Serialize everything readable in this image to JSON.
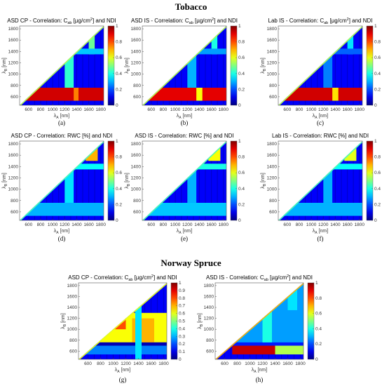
{
  "groups": {
    "tobacco": "Tobacco",
    "spruce": "Norway Spruce"
  },
  "colors": {
    "background": "#ffffff",
    "frame": "#555555",
    "nan": "#ffffff"
  },
  "colormap": "jet",
  "chart_data": [
    {
      "id": "a",
      "panel_label": "(a)",
      "type": "heatmap",
      "title": "ASD CP - Correlation: C_ab [µg/cm²] and NDI",
      "title_parts": {
        "pre": "ASD CP - Correlation: C",
        "sub": "ab",
        "mid": " [µg/cm",
        "sup": "2",
        "post": "] and NDI"
      },
      "xlabel_sym": "λ",
      "xlabel_sub": "A",
      "xlabel_unit": " [nm]",
      "ylabel_sym": "λ",
      "ylabel_sub": "B",
      "ylabel_unit": " [nm]",
      "xticks": [
        600,
        800,
        1000,
        1200,
        1400,
        1600,
        1800
      ],
      "yticks": [
        600,
        800,
        1000,
        1200,
        1400,
        1600,
        1800
      ],
      "xlim": [
        450,
        1850
      ],
      "ylim": [
        450,
        1850
      ],
      "colorbar": {
        "ticks": [
          "0",
          "0.2",
          "0.4",
          "0.6",
          "0.8",
          "1"
        ],
        "range": [
          0,
          1
        ]
      },
      "regions": [
        {
          "x": [
            450,
            1850
          ],
          "y": [
            530,
            760
          ],
          "value": 0.92
        },
        {
          "x": [
            1350,
            1430
          ],
          "y": [
            530,
            760
          ],
          "value": 0.75
        },
        {
          "x": [
            1200,
            1350
          ],
          "y": [
            760,
            1850
          ],
          "value": 0.42
        },
        {
          "x": [
            1600,
            1700
          ],
          "y": [
            1350,
            1850
          ],
          "value": 0.48
        },
        {
          "x": [
            450,
            1850
          ],
          "y": [
            1350,
            1450
          ],
          "value": 0.32
        }
      ],
      "diag_value": 0.55
    },
    {
      "id": "b",
      "panel_label": "(b)",
      "type": "heatmap",
      "title": "ASD IS - Correlation: C_ab [µg/cm²] and NDI",
      "title_parts": {
        "pre": "ASD IS - Correlation: C",
        "sub": "ab",
        "mid": " [µg/cm",
        "sup": "2",
        "post": "] and NDI"
      },
      "xlabel_sym": "λ",
      "xlabel_sub": "A",
      "xlabel_unit": " [nm]",
      "ylabel_sym": "λ",
      "ylabel_sub": "B",
      "ylabel_unit": " [nm]",
      "xticks": [
        600,
        800,
        1000,
        1200,
        1400,
        1600,
        1800
      ],
      "yticks": [
        600,
        800,
        1000,
        1200,
        1400,
        1600,
        1800
      ],
      "xlim": [
        450,
        1850
      ],
      "ylim": [
        450,
        1850
      ],
      "colorbar": {
        "ticks": [
          "0",
          "0.2",
          "0.4",
          "0.6",
          "0.8",
          "1"
        ],
        "range": [
          0,
          1
        ]
      },
      "regions": [
        {
          "x": [
            450,
            1850
          ],
          "y": [
            530,
            760
          ],
          "value": 0.9
        },
        {
          "x": [
            1350,
            1450
          ],
          "y": [
            530,
            760
          ],
          "value": 0.62
        },
        {
          "x": [
            1200,
            1350
          ],
          "y": [
            760,
            1850
          ],
          "value": 0.3
        },
        {
          "x": [
            1600,
            1700
          ],
          "y": [
            1350,
            1850
          ],
          "value": 0.4
        },
        {
          "x": [
            450,
            1850
          ],
          "y": [
            1350,
            1450
          ],
          "value": 0.28
        }
      ],
      "diag_value": 0.55
    },
    {
      "id": "c",
      "panel_label": "(c)",
      "type": "heatmap",
      "title": "Lab IS - Correlation: C_ab [µg/cm²] and NDI",
      "title_parts": {
        "pre": "Lab IS - Correlation: C",
        "sub": "ab",
        "mid": " [µg/cm",
        "sup": "2",
        "post": "] and NDI"
      },
      "xlabel_sym": "λ",
      "xlabel_sub": "A",
      "xlabel_unit": " [nm]",
      "ylabel_sym": "λ",
      "ylabel_sub": "B",
      "ylabel_unit": " [nm]",
      "xticks": [
        600,
        800,
        1000,
        1200,
        1400,
        1600,
        1800
      ],
      "yticks": [
        600,
        800,
        1000,
        1200,
        1400,
        1600,
        1800
      ],
      "xlim": [
        450,
        1850
      ],
      "ylim": [
        450,
        1850
      ],
      "colorbar": {
        "ticks": [
          "0",
          "0.2",
          "0.4",
          "0.6",
          "0.8",
          "1"
        ],
        "range": [
          0,
          1
        ]
      },
      "regions": [
        {
          "x": [
            450,
            1850
          ],
          "y": [
            530,
            760
          ],
          "value": 0.92
        },
        {
          "x": [
            1350,
            1450
          ],
          "y": [
            530,
            760
          ],
          "value": 0.65
        },
        {
          "x": [
            1200,
            1350
          ],
          "y": [
            760,
            1850
          ],
          "value": 0.25
        },
        {
          "x": [
            1600,
            1700
          ],
          "y": [
            1350,
            1850
          ],
          "value": 0.35
        },
        {
          "x": [
            450,
            1850
          ],
          "y": [
            1350,
            1450
          ],
          "value": 0.22
        }
      ],
      "diag_value": 0.55
    },
    {
      "id": "d",
      "panel_label": "(d)",
      "type": "heatmap",
      "title": "ASD CP - Correlation: RWC [%] and NDI",
      "title_parts": {
        "pre": "ASD CP - Correlation: RWC [%] and NDI",
        "sub": "",
        "mid": "",
        "sup": "",
        "post": ""
      },
      "xlabel_sym": "λ",
      "xlabel_sub": "A",
      "xlabel_unit": " [nm]",
      "ylabel_sym": "λ",
      "ylabel_sub": "B",
      "ylabel_unit": " [nm]",
      "xticks": [
        600,
        800,
        1000,
        1200,
        1400,
        1600,
        1800
      ],
      "yticks": [
        600,
        800,
        1000,
        1200,
        1400,
        1600,
        1800
      ],
      "xlim": [
        450,
        1850
      ],
      "ylim": [
        450,
        1850
      ],
      "colorbar": {
        "ticks": [
          "0",
          "0.2",
          "0.4",
          "0.6",
          "0.8",
          "1"
        ],
        "range": [
          0,
          1
        ]
      },
      "regions": [
        {
          "x": [
            450,
            1850
          ],
          "y": [
            530,
            760
          ],
          "value": 0.3
        },
        {
          "x": [
            1200,
            1350
          ],
          "y": [
            760,
            1850
          ],
          "value": 0.35
        },
        {
          "x": [
            1550,
            1750
          ],
          "y": [
            1500,
            1850
          ],
          "value": 0.7
        },
        {
          "x": [
            450,
            1850
          ],
          "y": [
            1350,
            1450
          ],
          "value": 0.38
        }
      ],
      "diag_value": 0.45
    },
    {
      "id": "e",
      "panel_label": "(e)",
      "type": "heatmap",
      "title": "ASD IS - Correlation: RWC [%] and NDI",
      "title_parts": {
        "pre": "ASD IS - Correlation: RWC [%] and NDI",
        "sub": "",
        "mid": "",
        "sup": "",
        "post": ""
      },
      "xlabel_sym": "λ",
      "xlabel_sub": "A",
      "xlabel_unit": " [nm]",
      "ylabel_sym": "λ",
      "ylabel_sub": "B",
      "ylabel_unit": " [nm]",
      "xticks": [
        600,
        800,
        1000,
        1200,
        1400,
        1600,
        1800
      ],
      "yticks": [
        600,
        800,
        1000,
        1200,
        1400,
        1600,
        1800
      ],
      "xlim": [
        450,
        1850
      ],
      "ylim": [
        450,
        1850
      ],
      "colorbar": {
        "ticks": [
          "0",
          "0.2",
          "0.4",
          "0.6",
          "0.8",
          "1"
        ],
        "range": [
          0,
          1
        ]
      },
      "regions": [
        {
          "x": [
            450,
            1850
          ],
          "y": [
            530,
            760
          ],
          "value": 0.32
        },
        {
          "x": [
            1200,
            1350
          ],
          "y": [
            760,
            1850
          ],
          "value": 0.3
        },
        {
          "x": [
            1550,
            1750
          ],
          "y": [
            1500,
            1850
          ],
          "value": 0.62
        },
        {
          "x": [
            450,
            1850
          ],
          "y": [
            1350,
            1450
          ],
          "value": 0.4
        }
      ],
      "diag_value": 0.45
    },
    {
      "id": "f",
      "panel_label": "(f)",
      "type": "heatmap",
      "title": "Lab IS - Correlation: RWC [%] and NDI",
      "title_parts": {
        "pre": "Lab IS - Correlation: RWC [%] and NDI",
        "sub": "",
        "mid": "",
        "sup": "",
        "post": ""
      },
      "xlabel_sym": "λ",
      "xlabel_sub": "A",
      "xlabel_unit": " [nm]",
      "ylabel_sym": "λ",
      "ylabel_sub": "B",
      "ylabel_unit": " [nm]",
      "xticks": [
        600,
        800,
        1000,
        1200,
        1400,
        1600,
        1800
      ],
      "yticks": [
        600,
        800,
        1000,
        1200,
        1400,
        1600,
        1800
      ],
      "xlim": [
        450,
        1850
      ],
      "ylim": [
        450,
        1850
      ],
      "colorbar": {
        "ticks": [
          "0",
          "0.2",
          "0.4",
          "0.6",
          "0.8",
          "1"
        ],
        "range": [
          0,
          1
        ]
      },
      "regions": [
        {
          "x": [
            450,
            1850
          ],
          "y": [
            530,
            760
          ],
          "value": 0.3
        },
        {
          "x": [
            1200,
            1350
          ],
          "y": [
            760,
            1850
          ],
          "value": 0.3
        },
        {
          "x": [
            1550,
            1750
          ],
          "y": [
            1500,
            1850
          ],
          "value": 0.6
        },
        {
          "x": [
            450,
            1850
          ],
          "y": [
            1350,
            1450
          ],
          "value": 0.38
        }
      ],
      "diag_value": 0.45
    },
    {
      "id": "g",
      "panel_label": "(g)",
      "type": "heatmap",
      "title": "ASD CP - Correlation: C_ab [µg/cm²] and NDI",
      "title_parts": {
        "pre": "ASD CP - Correlation: C",
        "sub": "ab",
        "mid": " [µg/cm",
        "sup": "2",
        "post": "] and NDI"
      },
      "xlabel_sym": "λ",
      "xlabel_sub": "A",
      "xlabel_unit": " [nm]",
      "ylabel_sym": "λ",
      "ylabel_sub": "B",
      "ylabel_unit": " [nm]",
      "xticks": [
        600,
        800,
        1000,
        1200,
        1400,
        1600,
        1800
      ],
      "yticks": [
        600,
        800,
        1000,
        1200,
        1400,
        1600,
        1800
      ],
      "xlim": [
        450,
        1850
      ],
      "ylim": [
        450,
        1850
      ],
      "colorbar": {
        "ticks": [
          "0",
          "0.1",
          "0.2",
          "0.3",
          "0.4",
          "0.5",
          "0.6",
          "0.7",
          "0.8",
          "0.9",
          "1"
        ],
        "range": [
          0,
          1
        ]
      },
      "regions": [
        {
          "x": [
            450,
            1850
          ],
          "y": [
            760,
            1300
          ],
          "value": 0.62
        },
        {
          "x": [
            850,
            1200
          ],
          "y": [
            1000,
            1450
          ],
          "value": 0.8
        },
        {
          "x": [
            1300,
            1650
          ],
          "y": [
            760,
            1200
          ],
          "value": 0.7
        },
        {
          "x": [
            450,
            1850
          ],
          "y": [
            540,
            700
          ],
          "value": 0.25
        },
        {
          "x": [
            450,
            1850
          ],
          "y": [
            700,
            760
          ],
          "value": 0.05
        },
        {
          "x": [
            1350,
            1450
          ],
          "y": [
            450,
            1850
          ],
          "value": 0.35
        }
      ],
      "diag_value": 0.6
    },
    {
      "id": "h",
      "panel_label": "(h)",
      "type": "heatmap",
      "title": "ASD IS - Correlation: C_ab [µg/cm²] and NDI",
      "title_parts": {
        "pre": "ASD IS - Correlation: C",
        "sub": "ab",
        "mid": " [µg/cm",
        "sup": "2",
        "post": "] and NDI"
      },
      "xlabel_sym": "λ",
      "xlabel_sub": "A",
      "xlabel_unit": " [nm]",
      "ylabel_sym": "λ",
      "ylabel_sub": "B",
      "ylabel_unit": " [nm]",
      "xticks": [
        600,
        800,
        1000,
        1200,
        1400,
        1600,
        1800
      ],
      "yticks": [
        600,
        800,
        1000,
        1200,
        1400,
        1600,
        1800
      ],
      "xlim": [
        450,
        1850
      ],
      "ylim": [
        450,
        1850
      ],
      "colorbar": {
        "ticks": [
          "0",
          "0.2",
          "0.4",
          "0.6",
          "0.8",
          "1"
        ],
        "range": [
          0,
          1
        ]
      },
      "regions": [
        {
          "x": [
            720,
            1400
          ],
          "y": [
            540,
            700
          ],
          "value": 0.93
        },
        {
          "x": [
            1400,
            1850
          ],
          "y": [
            540,
            700
          ],
          "value": 0.55
        },
        {
          "x": [
            450,
            1850
          ],
          "y": [
            700,
            760
          ],
          "value": 0.15
        },
        {
          "x": [
            450,
            1850
          ],
          "y": [
            760,
            1850
          ],
          "value": 0.28
        },
        {
          "x": [
            1200,
            1350
          ],
          "y": [
            760,
            1850
          ],
          "value": 0.4
        },
        {
          "x": [
            1600,
            1750
          ],
          "y": [
            1350,
            1850
          ],
          "value": 0.35
        }
      ],
      "diag_value": 0.7
    }
  ]
}
